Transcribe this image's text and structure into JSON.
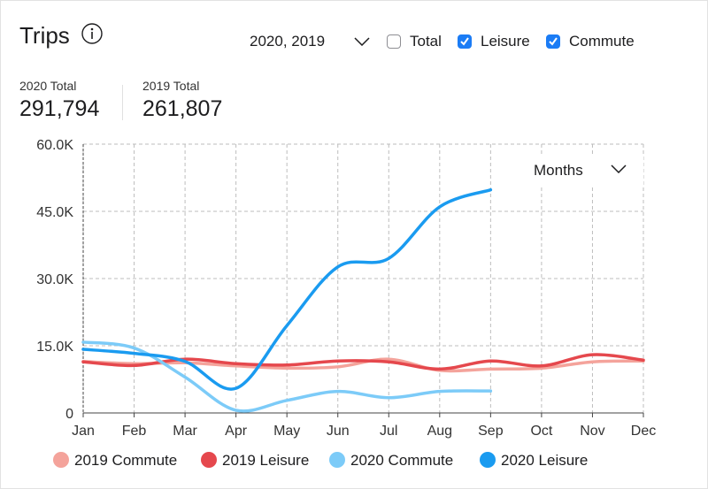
{
  "header": {
    "title": "Trips",
    "period_selector": "2020, 2019",
    "filters": [
      {
        "label": "Total",
        "checked": false
      },
      {
        "label": "Leisure",
        "checked": true
      },
      {
        "label": "Commute",
        "checked": true
      }
    ]
  },
  "stats": [
    {
      "label": "2020 Total",
      "value": "291,794"
    },
    {
      "label": "2019 Total",
      "value": "261,807"
    }
  ],
  "granularity": "Months",
  "colors": {
    "2019 Commute": "#f4a39b",
    "2019 Leisure": "#e5484d",
    "2020 Commute": "#7ccbf8",
    "2020 Leisure": "#1a9bf0",
    "checkbox_accent": "#1b7cf5"
  },
  "chart_data": {
    "type": "line",
    "categories": [
      "Jan",
      "Feb",
      "Mar",
      "Apr",
      "May",
      "Jun",
      "Jul",
      "Aug",
      "Sep",
      "Oct",
      "Nov",
      "Dec"
    ],
    "y_ticks": [
      "0",
      "15.0K",
      "30.0K",
      "45.0K",
      "60.0K"
    ],
    "ylim": [
      0,
      60000
    ],
    "grid": true,
    "legend_position": "bottom",
    "series": [
      {
        "name": "2019 Commute",
        "values": [
          11500,
          11000,
          11200,
          10500,
          10000,
          10300,
          12000,
          9500,
          9800,
          10000,
          11400,
          11600
        ]
      },
      {
        "name": "2019 Leisure",
        "values": [
          11400,
          10600,
          12000,
          11000,
          10700,
          11600,
          11400,
          9800,
          11600,
          10500,
          13000,
          11800
        ]
      },
      {
        "name": "2020 Commute",
        "values": [
          15800,
          14500,
          8000,
          600,
          2800,
          4800,
          3400,
          4800,
          4900,
          null,
          null,
          null
        ]
      },
      {
        "name": "2020 Leisure",
        "values": [
          14200,
          13300,
          11500,
          5500,
          19500,
          32600,
          34500,
          46000,
          49800,
          null,
          null,
          null
        ]
      }
    ]
  }
}
